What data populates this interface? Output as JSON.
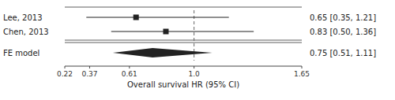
{
  "chart_data": {
    "type": "forest",
    "xlabel": "Overall survival HR (95% CI)",
    "categories": [
      "Lee, 2013",
      "Chen, 2013"
    ],
    "values": [
      0.65,
      0.83
    ],
    "ci_low": [
      0.35,
      0.5
    ],
    "ci_high": [
      1.21,
      1.36
    ],
    "value_labels": [
      "0.65 [0.35, 1.21]",
      "0.83 [0.50, 1.36]"
    ],
    "summary": {
      "name": "FE model",
      "value": 0.75,
      "ci_low": 0.51,
      "ci_high": 1.11,
      "value_label": "0.75 [0.51, 1.11]"
    },
    "ref_line": 1.0,
    "xlim": [
      0.22,
      1.65
    ],
    "xticks": [
      0.22,
      0.37,
      0.61,
      {
        "value": 1.0,
        "label": "1.0"
      },
      1.65
    ]
  }
}
